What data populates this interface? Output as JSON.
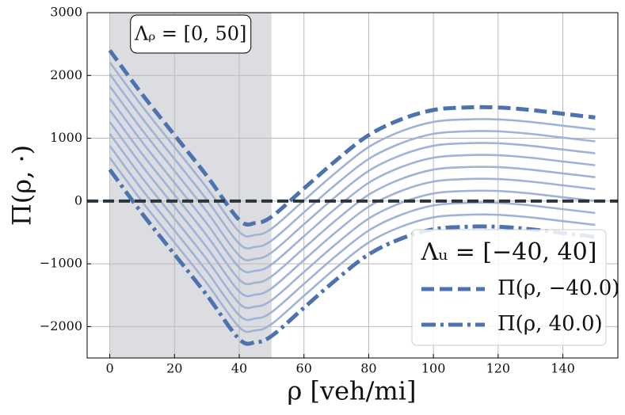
{
  "chart_data": {
    "type": "line",
    "x_label": "ρ [veh/mi]",
    "y_label": "Π(ρ, ·)",
    "annotation": "Λᵨ = [0, 50]",
    "shade": [
      0,
      50
    ],
    "hline": 0,
    "legend_title": "Λᵤ = [−40, 40]",
    "legend_position": "lower right",
    "grid": true,
    "x": [
      0,
      10,
      20,
      30,
      40,
      45,
      50,
      60,
      70,
      80,
      90,
      100,
      110,
      120,
      130,
      140,
      150
    ],
    "xlim": [
      -7,
      157
    ],
    "ylim": [
      -2500,
      3000
    ],
    "xticks": [
      0,
      20,
      40,
      60,
      80,
      100,
      120,
      140
    ],
    "yticks": [
      {
        "value": -2000,
        "label": "−2000"
      },
      {
        "value": -1000,
        "label": "−1000"
      },
      0,
      1000,
      2000,
      3000
    ],
    "series": [
      {
        "color": "#9fb3d8",
        "values": [
          2210,
          1510,
          860,
          210,
          -490,
          -540,
          -440,
          10,
          460,
          860,
          1110,
          1260,
          1300,
          1300,
          1260,
          1200,
          1140
        ]
      },
      {
        "color": "#9fb3d8",
        "values": [
          2020,
          1320,
          670,
          20,
          -680,
          -730,
          -630,
          -180,
          270,
          670,
          920,
          1070,
          1110,
          1110,
          1070,
          1010,
          950
        ]
      },
      {
        "color": "#9fb3d8",
        "values": [
          1830,
          1130,
          480,
          -170,
          -870,
          -920,
          -820,
          -370,
          80,
          480,
          730,
          880,
          920,
          920,
          880,
          820,
          760
        ]
      },
      {
        "color": "#9fb3d8",
        "values": [
          1640,
          940,
          290,
          -360,
          -1060,
          -1110,
          -1010,
          -560,
          -110,
          290,
          540,
          690,
          730,
          730,
          690,
          630,
          570
        ]
      },
      {
        "color": "#9fb3d8",
        "values": [
          1450,
          750,
          100,
          -550,
          -1250,
          -1300,
          -1200,
          -750,
          -300,
          100,
          350,
          500,
          540,
          540,
          500,
          440,
          380
        ]
      },
      {
        "color": "#9fb3d8",
        "values": [
          1260,
          560,
          -90,
          -740,
          -1440,
          -1490,
          -1390,
          -940,
          -490,
          -90,
          160,
          310,
          350,
          350,
          310,
          250,
          190
        ]
      },
      {
        "color": "#9fb3d8",
        "values": [
          1070,
          370,
          -280,
          -930,
          -1630,
          -1680,
          -1580,
          -1130,
          -680,
          -280,
          -30,
          120,
          160,
          160,
          120,
          60,
          0
        ]
      },
      {
        "color": "#9fb3d8",
        "values": [
          880,
          180,
          -470,
          -1120,
          -1820,
          -1870,
          -1770,
          -1320,
          -870,
          -470,
          -220,
          -70,
          -30,
          -30,
          -70,
          -130,
          -190
        ]
      },
      {
        "color": "#9fb3d8",
        "values": [
          690,
          -10,
          -660,
          -1310,
          -2010,
          -2060,
          -1960,
          -1510,
          -1060,
          -660,
          -410,
          -260,
          -220,
          -220,
          -260,
          -320,
          -380
        ]
      },
      {
        "name": "Π(ρ, −40.0)",
        "color": "#4c72b0",
        "dash": "dashed",
        "values": [
          2400,
          1700,
          1050,
          400,
          -300,
          -350,
          -250,
          200,
          650,
          1050,
          1300,
          1450,
          1490,
          1490,
          1450,
          1390,
          1330
        ]
      },
      {
        "name": "Π(ρ, 40.0)",
        "color": "#4c72b0",
        "dash": "dashdot",
        "values": [
          500,
          -200,
          -850,
          -1500,
          -2200,
          -2250,
          -2150,
          -1700,
          -1250,
          -850,
          -600,
          -450,
          -410,
          -410,
          -450,
          -510,
          -570
        ]
      }
    ]
  }
}
